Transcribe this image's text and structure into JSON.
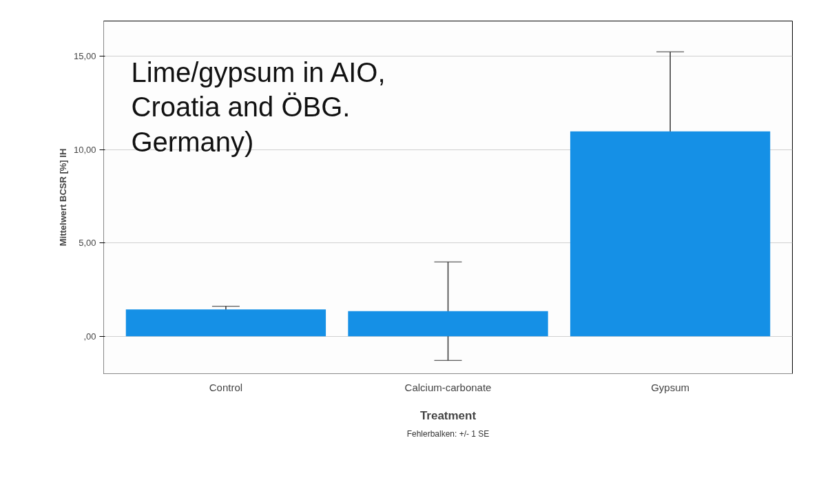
{
  "chart_data": {
    "type": "bar",
    "xlabel": "Treatment",
    "ylabel": "Mittelwert BCSR [%] IH",
    "categories": [
      "Control",
      "Calcium-carbonate",
      "Gypsum"
    ],
    "values": [
      1.44,
      1.35,
      10.98
    ],
    "errors": [
      0.17,
      2.64,
      4.27
    ],
    "color": "#1590e6",
    "ylim": [
      -2.0,
      16.9
    ],
    "yticks": [
      {
        "value": 0,
        "label": ",00"
      },
      {
        "value": 5,
        "label": "5,00"
      },
      {
        "value": 10,
        "label": "10,00"
      },
      {
        "value": 15,
        "label": "15,00"
      }
    ],
    "grid": "y",
    "annotations": [
      "Lime/gypsum in AIO, Croatia and ÖBG. Germany)",
      "Fehlerbalken: +/- 1 SE"
    ]
  }
}
